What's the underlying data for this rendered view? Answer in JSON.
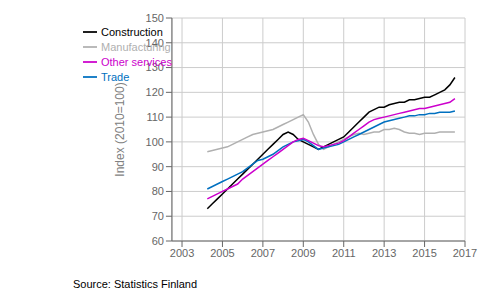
{
  "chart_data": {
    "type": "line",
    "ylabel": "Index (2010=100)",
    "source": "Source: Statistics Finland",
    "xlim": [
      2002.5,
      2017.0
    ],
    "xticks": [
      2003,
      2005,
      2007,
      2009,
      2011,
      2013,
      2015,
      2017
    ],
    "ylim": [
      60,
      150
    ],
    "yticks": [
      60,
      70,
      80,
      90,
      100,
      110,
      120,
      130,
      140,
      150
    ],
    "grid": true,
    "legend": "upper left",
    "x": [
      2004.25,
      2004.5,
      2004.75,
      2005.0,
      2005.25,
      2005.5,
      2005.75,
      2006.0,
      2006.25,
      2006.5,
      2006.75,
      2007.0,
      2007.25,
      2007.5,
      2007.75,
      2008.0,
      2008.25,
      2008.5,
      2008.75,
      2009.0,
      2009.25,
      2009.5,
      2009.75,
      2010.0,
      2010.25,
      2010.5,
      2010.75,
      2011.0,
      2011.25,
      2011.5,
      2011.75,
      2012.0,
      2012.25,
      2012.5,
      2012.75,
      2013.0,
      2013.25,
      2013.5,
      2013.75,
      2014.0,
      2014.25,
      2014.5,
      2014.75,
      2015.0,
      2015.25,
      2015.5,
      2015.75,
      2016.0,
      2016.25,
      2016.5
    ],
    "series": [
      {
        "name": "Manufacturing",
        "color": "#b0b0b0",
        "values": [
          96,
          96.5,
          97,
          97.5,
          98,
          99,
          100,
          101,
          102,
          103,
          103.5,
          104,
          104.5,
          105,
          106,
          107,
          108,
          109,
          110,
          111,
          108,
          103,
          99,
          97,
          98,
          99,
          100,
          101,
          102,
          103,
          103.5,
          103,
          103.5,
          104,
          104,
          105,
          105,
          105.5,
          105,
          104,
          103.5,
          103.5,
          103,
          103.5,
          103.5,
          103.5,
          104,
          104,
          104,
          104
        ]
      },
      {
        "name": "Construction",
        "color": "#000000",
        "values": [
          73,
          75,
          77,
          79,
          81,
          83,
          85,
          87,
          89,
          91,
          93,
          95,
          97,
          99,
          101,
          103,
          104,
          103,
          101,
          100,
          99,
          98,
          97,
          98,
          99,
          100,
          101,
          102,
          104,
          106,
          108,
          110,
          112,
          113,
          114,
          114,
          115,
          115.5,
          116,
          116,
          117,
          117,
          117.5,
          118,
          118,
          119,
          120,
          121,
          123,
          126
        ]
      },
      {
        "name": "Trade",
        "color": "#0070c0",
        "values": [
          81,
          82,
          83,
          84,
          85,
          86,
          87,
          88,
          89.5,
          91,
          92.5,
          93,
          94,
          95,
          96.5,
          98,
          99,
          100,
          100.5,
          101,
          100,
          98.5,
          97,
          97.5,
          98,
          98.5,
          99,
          100,
          101,
          102,
          103,
          104,
          105,
          106,
          107,
          108,
          108.5,
          109,
          109.5,
          110,
          110.5,
          110.5,
          111,
          111,
          111.5,
          111.5,
          112,
          112,
          112,
          112.5
        ]
      },
      {
        "name": "Other services",
        "color": "#cc00cc",
        "values": [
          77,
          78,
          79,
          80,
          81,
          82,
          83,
          85,
          86.5,
          88,
          89.5,
          91,
          92.5,
          94,
          95.5,
          97,
          98.5,
          100,
          101,
          101.5,
          100.5,
          99.5,
          98.5,
          98,
          98.5,
          99,
          99.5,
          100.5,
          102,
          103.5,
          105,
          106.5,
          108,
          109,
          109.5,
          110,
          110.5,
          111,
          111.5,
          112,
          112.5,
          113,
          113.5,
          113.5,
          114,
          114.5,
          115,
          115.5,
          116,
          117.5
        ]
      }
    ]
  }
}
